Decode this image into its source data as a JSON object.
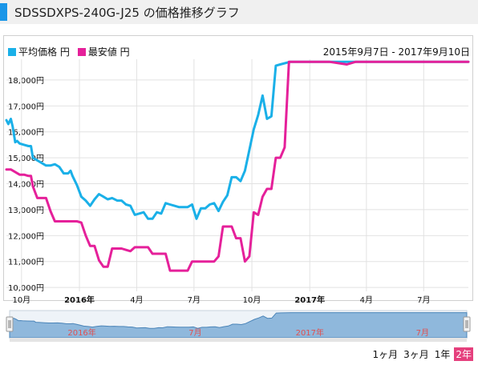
{
  "page": {
    "title": "SDSSDXPS-240G-J25 の価格推移グラフ"
  },
  "colors": {
    "avg": "#1ab0e8",
    "min": "#e5209a",
    "accent": "#1a96e8",
    "navfill": "#8fb8dc",
    "navline": "#4a84b8"
  },
  "date_range": "2015年9月7日 - 2017年9月10日",
  "periods": [
    "1ヶ月",
    "3ヶ月",
    "1年",
    "2年"
  ],
  "active_period": "2年",
  "nav_labels": [
    "2016年",
    "7月",
    "2017年",
    "7月"
  ],
  "chart_data": {
    "type": "line",
    "x_start": "2015-09-07",
    "x_end": "2017-09-10",
    "xlim": [
      "2015-09-07",
      "2017-09-10"
    ],
    "ylim": [
      9850,
      18800
    ],
    "y_ticks": [
      10000,
      11000,
      12000,
      13000,
      14000,
      15000,
      16000,
      17000,
      18000
    ],
    "y_tick_labels": [
      "10,000円",
      "11,000円",
      "12,000円",
      "13,000円",
      "14,000円",
      "15,000円",
      "16,000円",
      "17,000円",
      "18,000円"
    ],
    "x_ticks": [
      {
        "date": "2015-10-01",
        "label": "10月",
        "bold": false
      },
      {
        "date": "2016-01-01",
        "label": "2016年",
        "bold": true
      },
      {
        "date": "2016-04-01",
        "label": "4月",
        "bold": false
      },
      {
        "date": "2016-07-01",
        "label": "7月",
        "bold": false
      },
      {
        "date": "2016-10-01",
        "label": "10月",
        "bold": false
      },
      {
        "date": "2017-01-01",
        "label": "2017年",
        "bold": true
      },
      {
        "date": "2017-04-01",
        "label": "4月",
        "bold": false
      },
      {
        "date": "2017-07-01",
        "label": "7月",
        "bold": false
      }
    ],
    "grid": true,
    "legend": "top-left",
    "series": [
      {
        "name": "平均価格 円",
        "points": [
          [
            "2015-09-07",
            16450
          ],
          [
            "2015-09-10",
            16300
          ],
          [
            "2015-09-14",
            16500
          ],
          [
            "2015-09-17",
            16200
          ],
          [
            "2015-09-21",
            15600
          ],
          [
            "2015-09-24",
            15650
          ],
          [
            "2015-09-28",
            15550
          ],
          [
            "2015-10-05",
            15500
          ],
          [
            "2015-10-12",
            15450
          ],
          [
            "2015-10-16",
            15450
          ],
          [
            "2015-10-19",
            15000
          ],
          [
            "2015-10-26",
            14900
          ],
          [
            "2015-11-02",
            14800
          ],
          [
            "2015-11-09",
            14700
          ],
          [
            "2015-11-16",
            14700
          ],
          [
            "2015-11-23",
            14750
          ],
          [
            "2015-11-30",
            14650
          ],
          [
            "2015-12-07",
            14400
          ],
          [
            "2015-12-14",
            14400
          ],
          [
            "2015-12-18",
            14500
          ],
          [
            "2015-12-21",
            14300
          ],
          [
            "2015-12-28",
            13950
          ],
          [
            "2016-01-04",
            13500
          ],
          [
            "2016-01-11",
            13350
          ],
          [
            "2016-01-18",
            13150
          ],
          [
            "2016-01-25",
            13400
          ],
          [
            "2016-02-01",
            13600
          ],
          [
            "2016-02-08",
            13500
          ],
          [
            "2016-02-15",
            13400
          ],
          [
            "2016-02-22",
            13450
          ],
          [
            "2016-03-01",
            13350
          ],
          [
            "2016-03-08",
            13350
          ],
          [
            "2016-03-15",
            13200
          ],
          [
            "2016-03-22",
            13150
          ],
          [
            "2016-03-29",
            12800
          ],
          [
            "2016-04-05",
            12850
          ],
          [
            "2016-04-12",
            12900
          ],
          [
            "2016-04-19",
            12650
          ],
          [
            "2016-04-26",
            12650
          ],
          [
            "2016-05-03",
            12900
          ],
          [
            "2016-05-10",
            12850
          ],
          [
            "2016-05-17",
            13250
          ],
          [
            "2016-05-24",
            13200
          ],
          [
            "2016-05-31",
            13150
          ],
          [
            "2016-06-07",
            13100
          ],
          [
            "2016-06-14",
            13100
          ],
          [
            "2016-06-21",
            13100
          ],
          [
            "2016-06-28",
            13200
          ],
          [
            "2016-07-05",
            12650
          ],
          [
            "2016-07-12",
            13050
          ],
          [
            "2016-07-19",
            13050
          ],
          [
            "2016-07-26",
            13200
          ],
          [
            "2016-08-02",
            13250
          ],
          [
            "2016-08-09",
            12950
          ],
          [
            "2016-08-16",
            13300
          ],
          [
            "2016-08-23",
            13550
          ],
          [
            "2016-08-30",
            14250
          ],
          [
            "2016-09-06",
            14250
          ],
          [
            "2016-09-13",
            14100
          ],
          [
            "2016-09-20",
            14500
          ],
          [
            "2016-09-27",
            15300
          ],
          [
            "2016-10-04",
            16100
          ],
          [
            "2016-10-11",
            16650
          ],
          [
            "2016-10-18",
            17400
          ],
          [
            "2016-10-25",
            16500
          ],
          [
            "2016-11-01",
            16600
          ],
          [
            "2016-11-08",
            18550
          ],
          [
            "2016-11-15",
            18600
          ],
          [
            "2016-12-01",
            18700
          ],
          [
            "2017-01-01",
            18700
          ],
          [
            "2017-02-01",
            18700
          ],
          [
            "2017-03-01",
            18700
          ],
          [
            "2017-04-01",
            18700
          ],
          [
            "2017-05-01",
            18700
          ],
          [
            "2017-06-01",
            18700
          ],
          [
            "2017-07-01",
            18700
          ],
          [
            "2017-08-01",
            18700
          ],
          [
            "2017-09-10",
            18700
          ]
        ]
      },
      {
        "name": "最安値 円",
        "points": [
          [
            "2015-09-07",
            14550
          ],
          [
            "2015-09-14",
            14550
          ],
          [
            "2015-09-21",
            14450
          ],
          [
            "2015-09-28",
            14350
          ],
          [
            "2015-10-05",
            14350
          ],
          [
            "2015-10-12",
            14300
          ],
          [
            "2015-10-16",
            14300
          ],
          [
            "2015-10-19",
            13900
          ],
          [
            "2015-10-26",
            13450
          ],
          [
            "2015-11-02",
            13450
          ],
          [
            "2015-11-09",
            13450
          ],
          [
            "2015-11-16",
            12950
          ],
          [
            "2015-11-23",
            12550
          ],
          [
            "2015-11-30",
            12550
          ],
          [
            "2015-12-07",
            12550
          ],
          [
            "2015-12-14",
            12550
          ],
          [
            "2015-12-21",
            12550
          ],
          [
            "2015-12-28",
            12550
          ],
          [
            "2016-01-04",
            12500
          ],
          [
            "2016-01-11",
            12000
          ],
          [
            "2016-01-18",
            11600
          ],
          [
            "2016-01-25",
            11600
          ],
          [
            "2016-02-01",
            11050
          ],
          [
            "2016-02-08",
            10800
          ],
          [
            "2016-02-15",
            10800
          ],
          [
            "2016-02-22",
            11500
          ],
          [
            "2016-03-01",
            11500
          ],
          [
            "2016-03-08",
            11500
          ],
          [
            "2016-03-15",
            11450
          ],
          [
            "2016-03-22",
            11400
          ],
          [
            "2016-03-29",
            11550
          ],
          [
            "2016-04-05",
            11550
          ],
          [
            "2016-04-12",
            11550
          ],
          [
            "2016-04-19",
            11550
          ],
          [
            "2016-04-26",
            11300
          ],
          [
            "2016-05-03",
            11300
          ],
          [
            "2016-05-10",
            11300
          ],
          [
            "2016-05-17",
            11300
          ],
          [
            "2016-05-24",
            10650
          ],
          [
            "2016-05-31",
            10650
          ],
          [
            "2016-06-07",
            10650
          ],
          [
            "2016-06-14",
            10650
          ],
          [
            "2016-06-21",
            10650
          ],
          [
            "2016-06-28",
            11000
          ],
          [
            "2016-07-05",
            11000
          ],
          [
            "2016-07-12",
            11000
          ],
          [
            "2016-07-19",
            11000
          ],
          [
            "2016-07-26",
            11000
          ],
          [
            "2016-08-02",
            11000
          ],
          [
            "2016-08-09",
            11200
          ],
          [
            "2016-08-16",
            12350
          ],
          [
            "2016-08-23",
            12350
          ],
          [
            "2016-08-30",
            12350
          ],
          [
            "2016-09-06",
            11900
          ],
          [
            "2016-09-13",
            11900
          ],
          [
            "2016-09-20",
            11000
          ],
          [
            "2016-09-27",
            11200
          ],
          [
            "2016-10-04",
            12900
          ],
          [
            "2016-10-11",
            12800
          ],
          [
            "2016-10-18",
            13500
          ],
          [
            "2016-10-25",
            13800
          ],
          [
            "2016-11-01",
            13800
          ],
          [
            "2016-11-08",
            15000
          ],
          [
            "2016-11-15",
            15000
          ],
          [
            "2016-11-22",
            15400
          ],
          [
            "2016-11-29",
            18700
          ],
          [
            "2016-12-15",
            18700
          ],
          [
            "2017-01-01",
            18700
          ],
          [
            "2017-02-01",
            18700
          ],
          [
            "2017-03-01",
            18600
          ],
          [
            "2017-03-15",
            18700
          ],
          [
            "2017-04-01",
            18700
          ],
          [
            "2017-05-01",
            18700
          ],
          [
            "2017-06-01",
            18700
          ],
          [
            "2017-07-01",
            18700
          ],
          [
            "2017-08-01",
            18700
          ],
          [
            "2017-09-10",
            18700
          ]
        ]
      }
    ]
  }
}
